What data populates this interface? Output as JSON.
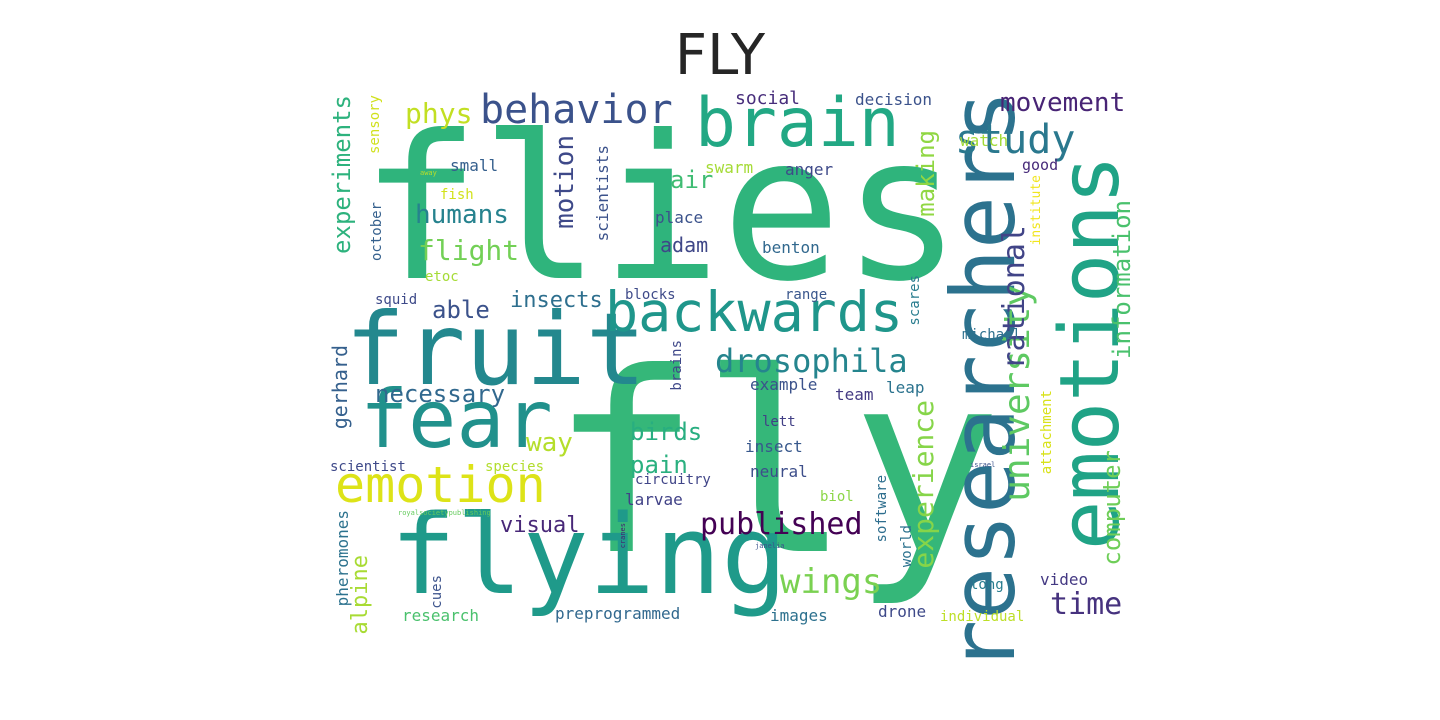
{
  "title": "FLY",
  "words": [
    {
      "text": "flies",
      "color": "#2fb47c"
    },
    {
      "text": "fly",
      "color": "#35b779"
    },
    {
      "text": "researchers",
      "color": "#2c728e"
    },
    {
      "text": "emotions",
      "color": "#20a386"
    },
    {
      "text": "fruit",
      "color": "#23888e"
    },
    {
      "text": "flying",
      "color": "#1f9a8a"
    },
    {
      "text": "fear",
      "color": "#21918c"
    },
    {
      "text": "brain",
      "color": "#22a884"
    },
    {
      "text": "backwards",
      "color": "#1f968b"
    },
    {
      "text": "emotion",
      "color": "#dde318"
    },
    {
      "text": "behavior",
      "color": "#3b528b"
    },
    {
      "text": "drosophila",
      "color": "#25858e"
    },
    {
      "text": "university",
      "color": "#5ec962"
    },
    {
      "text": "study",
      "color": "#2a788e"
    },
    {
      "text": "information",
      "color": "#4ac16d"
    },
    {
      "text": "computer",
      "color": "#6ece58"
    },
    {
      "text": "experience",
      "color": "#86d549"
    },
    {
      "text": "rational",
      "color": "#414487"
    },
    {
      "text": "wings",
      "color": "#7ad151"
    },
    {
      "text": "published",
      "color": "#440154"
    },
    {
      "text": "movement",
      "color": "#482475"
    },
    {
      "text": "time",
      "color": "#46327e"
    },
    {
      "text": "necessary",
      "color": "#31688e"
    },
    {
      "text": "experiments",
      "color": "#2db27d"
    },
    {
      "text": "flight",
      "color": "#73d056"
    },
    {
      "text": "humans",
      "color": "#26828e"
    },
    {
      "text": "motion",
      "color": "#3e4989"
    },
    {
      "text": "making",
      "color": "#90d743"
    },
    {
      "text": "air",
      "color": "#3fbc73"
    },
    {
      "text": "able",
      "color": "#3b528b"
    },
    {
      "text": "phys",
      "color": "#c2df23"
    },
    {
      "text": "way",
      "color": "#b5de2b"
    },
    {
      "text": "birds",
      "color": "#28ae80"
    },
    {
      "text": "pain",
      "color": "#2ab07f"
    },
    {
      "text": "visual",
      "color": "#482878"
    },
    {
      "text": "alpine",
      "color": "#a8db34"
    },
    {
      "text": "insects",
      "color": "#2e6f8e"
    },
    {
      "text": "gerhard",
      "color": "#35608d"
    },
    {
      "text": "adam",
      "color": "#3f4788"
    },
    {
      "text": "social",
      "color": "#472d7b"
    },
    {
      "text": "decision",
      "color": "#3b528b"
    },
    {
      "text": "sensory",
      "color": "#d0e11c"
    },
    {
      "text": "small",
      "color": "#355f8d"
    },
    {
      "text": "scientists",
      "color": "#3b528b"
    },
    {
      "text": "swarm",
      "color": "#a5db36"
    },
    {
      "text": "anger",
      "color": "#3e4989"
    },
    {
      "text": "watch",
      "color": "#a2da37"
    },
    {
      "text": "good",
      "color": "#472a7a"
    },
    {
      "text": "institute",
      "color": "#f1e51d"
    },
    {
      "text": "place",
      "color": "#3b528b"
    },
    {
      "text": "benton",
      "color": "#31688e"
    },
    {
      "text": "october",
      "color": "#35608d"
    },
    {
      "text": "fish",
      "color": "#d2e21b"
    },
    {
      "text": "etoc",
      "color": "#a5db36"
    },
    {
      "text": "blocks",
      "color": "#3e4a89"
    },
    {
      "text": "range",
      "color": "#39568c"
    },
    {
      "text": "scares",
      "color": "#287c8e"
    },
    {
      "text": "squid",
      "color": "#3e4a89"
    },
    {
      "text": "michael",
      "color": "#2d708e"
    },
    {
      "text": "brains",
      "color": "#3f4889"
    },
    {
      "text": "example",
      "color": "#3b528b"
    },
    {
      "text": "team",
      "color": "#443a83"
    },
    {
      "text": "leap",
      "color": "#2c738e"
    },
    {
      "text": "lett",
      "color": "#424086"
    },
    {
      "text": "insect",
      "color": "#38588c"
    },
    {
      "text": "neural",
      "color": "#3d4e8a"
    },
    {
      "text": "biol",
      "color": "#8bd646"
    },
    {
      "text": "circuitry",
      "color": "#404588"
    },
    {
      "text": "larvae",
      "color": "#414287"
    },
    {
      "text": "scientist",
      "color": "#3e4989"
    },
    {
      "text": "species",
      "color": "#b2dd2d"
    },
    {
      "text": "attachment",
      "color": "#d8e219"
    },
    {
      "text": "israel",
      "color": "#3b528b"
    },
    {
      "text": "software",
      "color": "#2e6e8e"
    },
    {
      "text": "world",
      "color": "#2c728e"
    },
    {
      "text": "long",
      "color": "#287c8e"
    },
    {
      "text": "video",
      "color": "#443983"
    },
    {
      "text": "pheromones",
      "color": "#2c728e"
    },
    {
      "text": "cues",
      "color": "#3b528b"
    },
    {
      "text": "research",
      "color": "#4ac16d"
    },
    {
      "text": "preprogrammed",
      "color": "#31688e"
    },
    {
      "text": "images",
      "color": "#2d718e"
    },
    {
      "text": "drone",
      "color": "#3e4989"
    },
    {
      "text": "individual",
      "color": "#bddf26"
    },
    {
      "text": "royalsocietypublishing",
      "color": "#65cb5e"
    },
    {
      "text": "cranes",
      "color": "#482071"
    },
    {
      "text": "janelia",
      "color": "#3b528b"
    },
    {
      "text": "away",
      "color": "#b8de29"
    }
  ]
}
